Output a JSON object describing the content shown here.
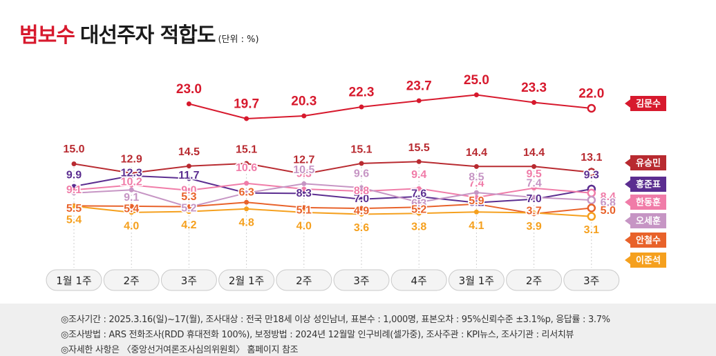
{
  "title": {
    "main_red": "범보수",
    "main_black": "대선주자 적합도",
    "unit": "(단위 : %)"
  },
  "chart_data": {
    "type": "line",
    "categories": [
      "1월 1주",
      "2주",
      "3주",
      "2월 1주",
      "2주",
      "3주",
      "4주",
      "3월 1주",
      "2주",
      "3주"
    ],
    "series": [
      {
        "name": "김문수",
        "color": "#d7192d",
        "values": [
          null,
          null,
          23.0,
          19.7,
          20.3,
          22.3,
          23.7,
          25.0,
          23.3,
          22.0
        ],
        "labels": [
          "",
          "",
          "23.0",
          "19.7",
          "20.3",
          "22.3",
          "23.7",
          "25.0",
          "23.3",
          "22.0"
        ]
      },
      {
        "name": "유승민",
        "color": "#b82a30",
        "values": [
          15.0,
          12.9,
          14.5,
          15.1,
          12.7,
          15.1,
          15.5,
          14.4,
          14.4,
          13.1
        ],
        "labels": [
          "15.0",
          "12.9",
          "14.5",
          "15.1",
          "12.7",
          "15.1",
          "15.5",
          "14.4",
          "14.4",
          "13.1"
        ]
      },
      {
        "name": "홍준표",
        "color": "#5b2d90",
        "values": [
          9.9,
          12.3,
          11.7,
          8.4,
          8.3,
          7.0,
          7.6,
          6.2,
          7.0,
          9.3
        ],
        "labels": [
          "9.9",
          "12.3",
          "11.7",
          "8.4",
          "8.3",
          "7.0",
          "7.6",
          "6.2",
          "7.0",
          "9.3"
        ]
      },
      {
        "name": "한동훈",
        "color": "#f07ca8",
        "values": [
          9.1,
          10.2,
          9.0,
          10.6,
          9.3,
          8.8,
          9.4,
          7.4,
          9.5,
          8.4
        ],
        "labels": [
          "9.1",
          "10.2",
          "9.0",
          "10.6",
          "9.3",
          "8.8",
          "9.4",
          "7.4",
          "9.5",
          "8.4"
        ]
      },
      {
        "name": "오세훈",
        "color": "#c695c4",
        "values": [
          8.4,
          9.1,
          5.2,
          8.4,
          10.5,
          9.6,
          6.3,
          8.5,
          7.4,
          6.8
        ],
        "labels": [
          "8.4",
          "9.1",
          "5.2",
          "8.4",
          "10.5",
          "9.6",
          "6.3",
          "8.5",
          "7.4",
          "6.8"
        ]
      },
      {
        "name": "안철수",
        "color": "#e8622a",
        "values": [
          5.5,
          5.4,
          5.3,
          6.3,
          5.1,
          4.9,
          5.2,
          5.9,
          3.7,
          5.0
        ],
        "labels": [
          "5.5",
          "5.4",
          "5.3",
          "6.3",
          "5.1",
          "4.9",
          "5.2",
          "5.9",
          "3.7",
          "5.0"
        ]
      },
      {
        "name": "이준석",
        "color": "#f5a01e",
        "values": [
          5.4,
          4.0,
          4.2,
          4.8,
          4.0,
          3.6,
          3.8,
          4.1,
          3.9,
          3.1
        ],
        "labels": [
          "5.4",
          "4.0",
          "4.2",
          "4.8",
          "4.0",
          "3.6",
          "3.8",
          "4.1",
          "3.9",
          "3.1"
        ]
      }
    ]
  },
  "footer": {
    "line1": "◎조사기간 : 2025.3.16(일)~17(월), 조사대상 : 전국 만18세 이상 성인남녀, 표본수 : 1,000명, 표본오차 : 95%신뢰수준 ±3.1%p, 응답률 : 3.7%",
    "line2": "◎조사방법 : ARS 전화조사(RDD 휴대전화 100%), 보정방법 : 2024년 12월말 인구비례(셀가중), 조사주관 : KPI뉴스, 조사기관 : 리서치뷰",
    "line3": "◎자세한 사항은 〈중앙선거여론조사심의위원회〉 홈페이지 참조"
  }
}
